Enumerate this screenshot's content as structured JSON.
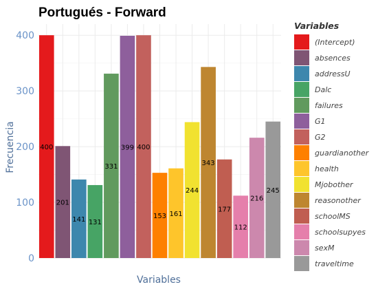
{
  "chart_data": {
    "type": "bar",
    "title": "Portugués - Forward",
    "xlabel": "Variables",
    "ylabel": "Frecuencia",
    "ylim": [
      0,
      420
    ],
    "yticks": [
      0,
      100,
      200,
      300,
      400
    ],
    "grid": true,
    "legend_title": "Variables",
    "legend_position": "right",
    "categories": [
      "(Intercept)",
      "absences",
      "addressU",
      "Dalc",
      "failures",
      "G1",
      "G2",
      "guardianother",
      "health",
      "Mjobother",
      "reasonother",
      "schoolMS",
      "schoolsupyes",
      "sexM",
      "traveltime"
    ],
    "values": [
      400,
      201,
      141,
      131,
      331,
      399,
      400,
      153,
      161,
      244,
      343,
      177,
      112,
      216,
      245
    ],
    "colors": [
      "#e41a1c",
      "#7f5574",
      "#3d87ad",
      "#47a465",
      "#619a5e",
      "#8e5f9c",
      "#c2615d",
      "#fe8000",
      "#fec52b",
      "#f1e230",
      "#be8630",
      "#c05e51",
      "#e57fab",
      "#cc88ad",
      "#999999"
    ]
  }
}
